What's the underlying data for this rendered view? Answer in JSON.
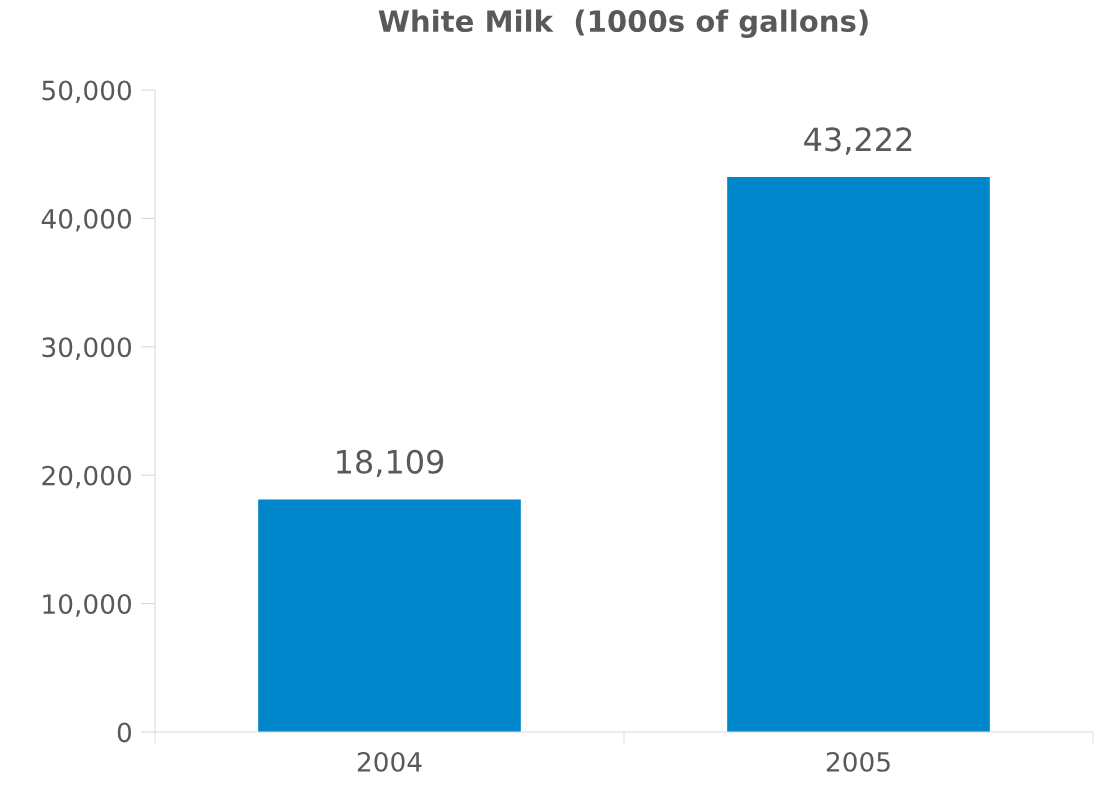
{
  "chart_data": {
    "type": "bar",
    "title": "White Milk  (1000s of gallons)",
    "categories": [
      "2004",
      "2005"
    ],
    "values": [
      18109,
      43222
    ],
    "color": "#0086cb",
    "ylim": [
      0,
      50000
    ],
    "yticks": [
      {
        "value": 0,
        "label": "0"
      },
      {
        "value": 10000,
        "label": "10,000"
      },
      {
        "value": 20000,
        "label": "20,000"
      },
      {
        "value": 30000,
        "label": "30,000"
      },
      {
        "value": 40000,
        "label": "40,000"
      },
      {
        "value": 50000,
        "label": "50,000"
      }
    ],
    "value_labels": [
      "18,109",
      "43,222"
    ],
    "grid": false
  }
}
